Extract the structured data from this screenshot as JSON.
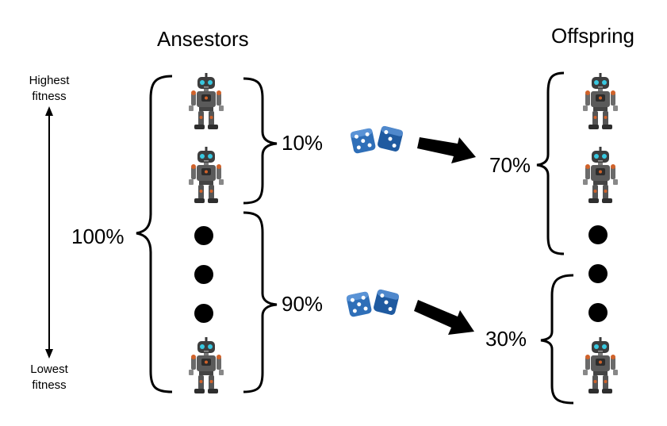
{
  "titles": {
    "ancestors": "Ansestors",
    "offspring": "Offspring"
  },
  "fitness_axis": {
    "top_label_line1": "Highest",
    "top_label_line2": "fitness",
    "bottom_label_line1": "Lowest",
    "bottom_label_line2": "fitness"
  },
  "ancestors": {
    "total_pct": "100%",
    "top_group_pct": "10%",
    "rest_group_pct": "90%"
  },
  "offspring": {
    "top_group_pct": "70%",
    "bottom_group_pct": "30%"
  },
  "icons": {
    "individual": "robot-icon",
    "random": "dice-icon",
    "transition": "arrow-icon",
    "more": "ellipsis-dot-icon"
  },
  "colors": {
    "dice": "#2f6fb8",
    "robot_body": "#3a3a3a",
    "robot_eye": "#38c8e0",
    "robot_accent": "#d0622a"
  }
}
